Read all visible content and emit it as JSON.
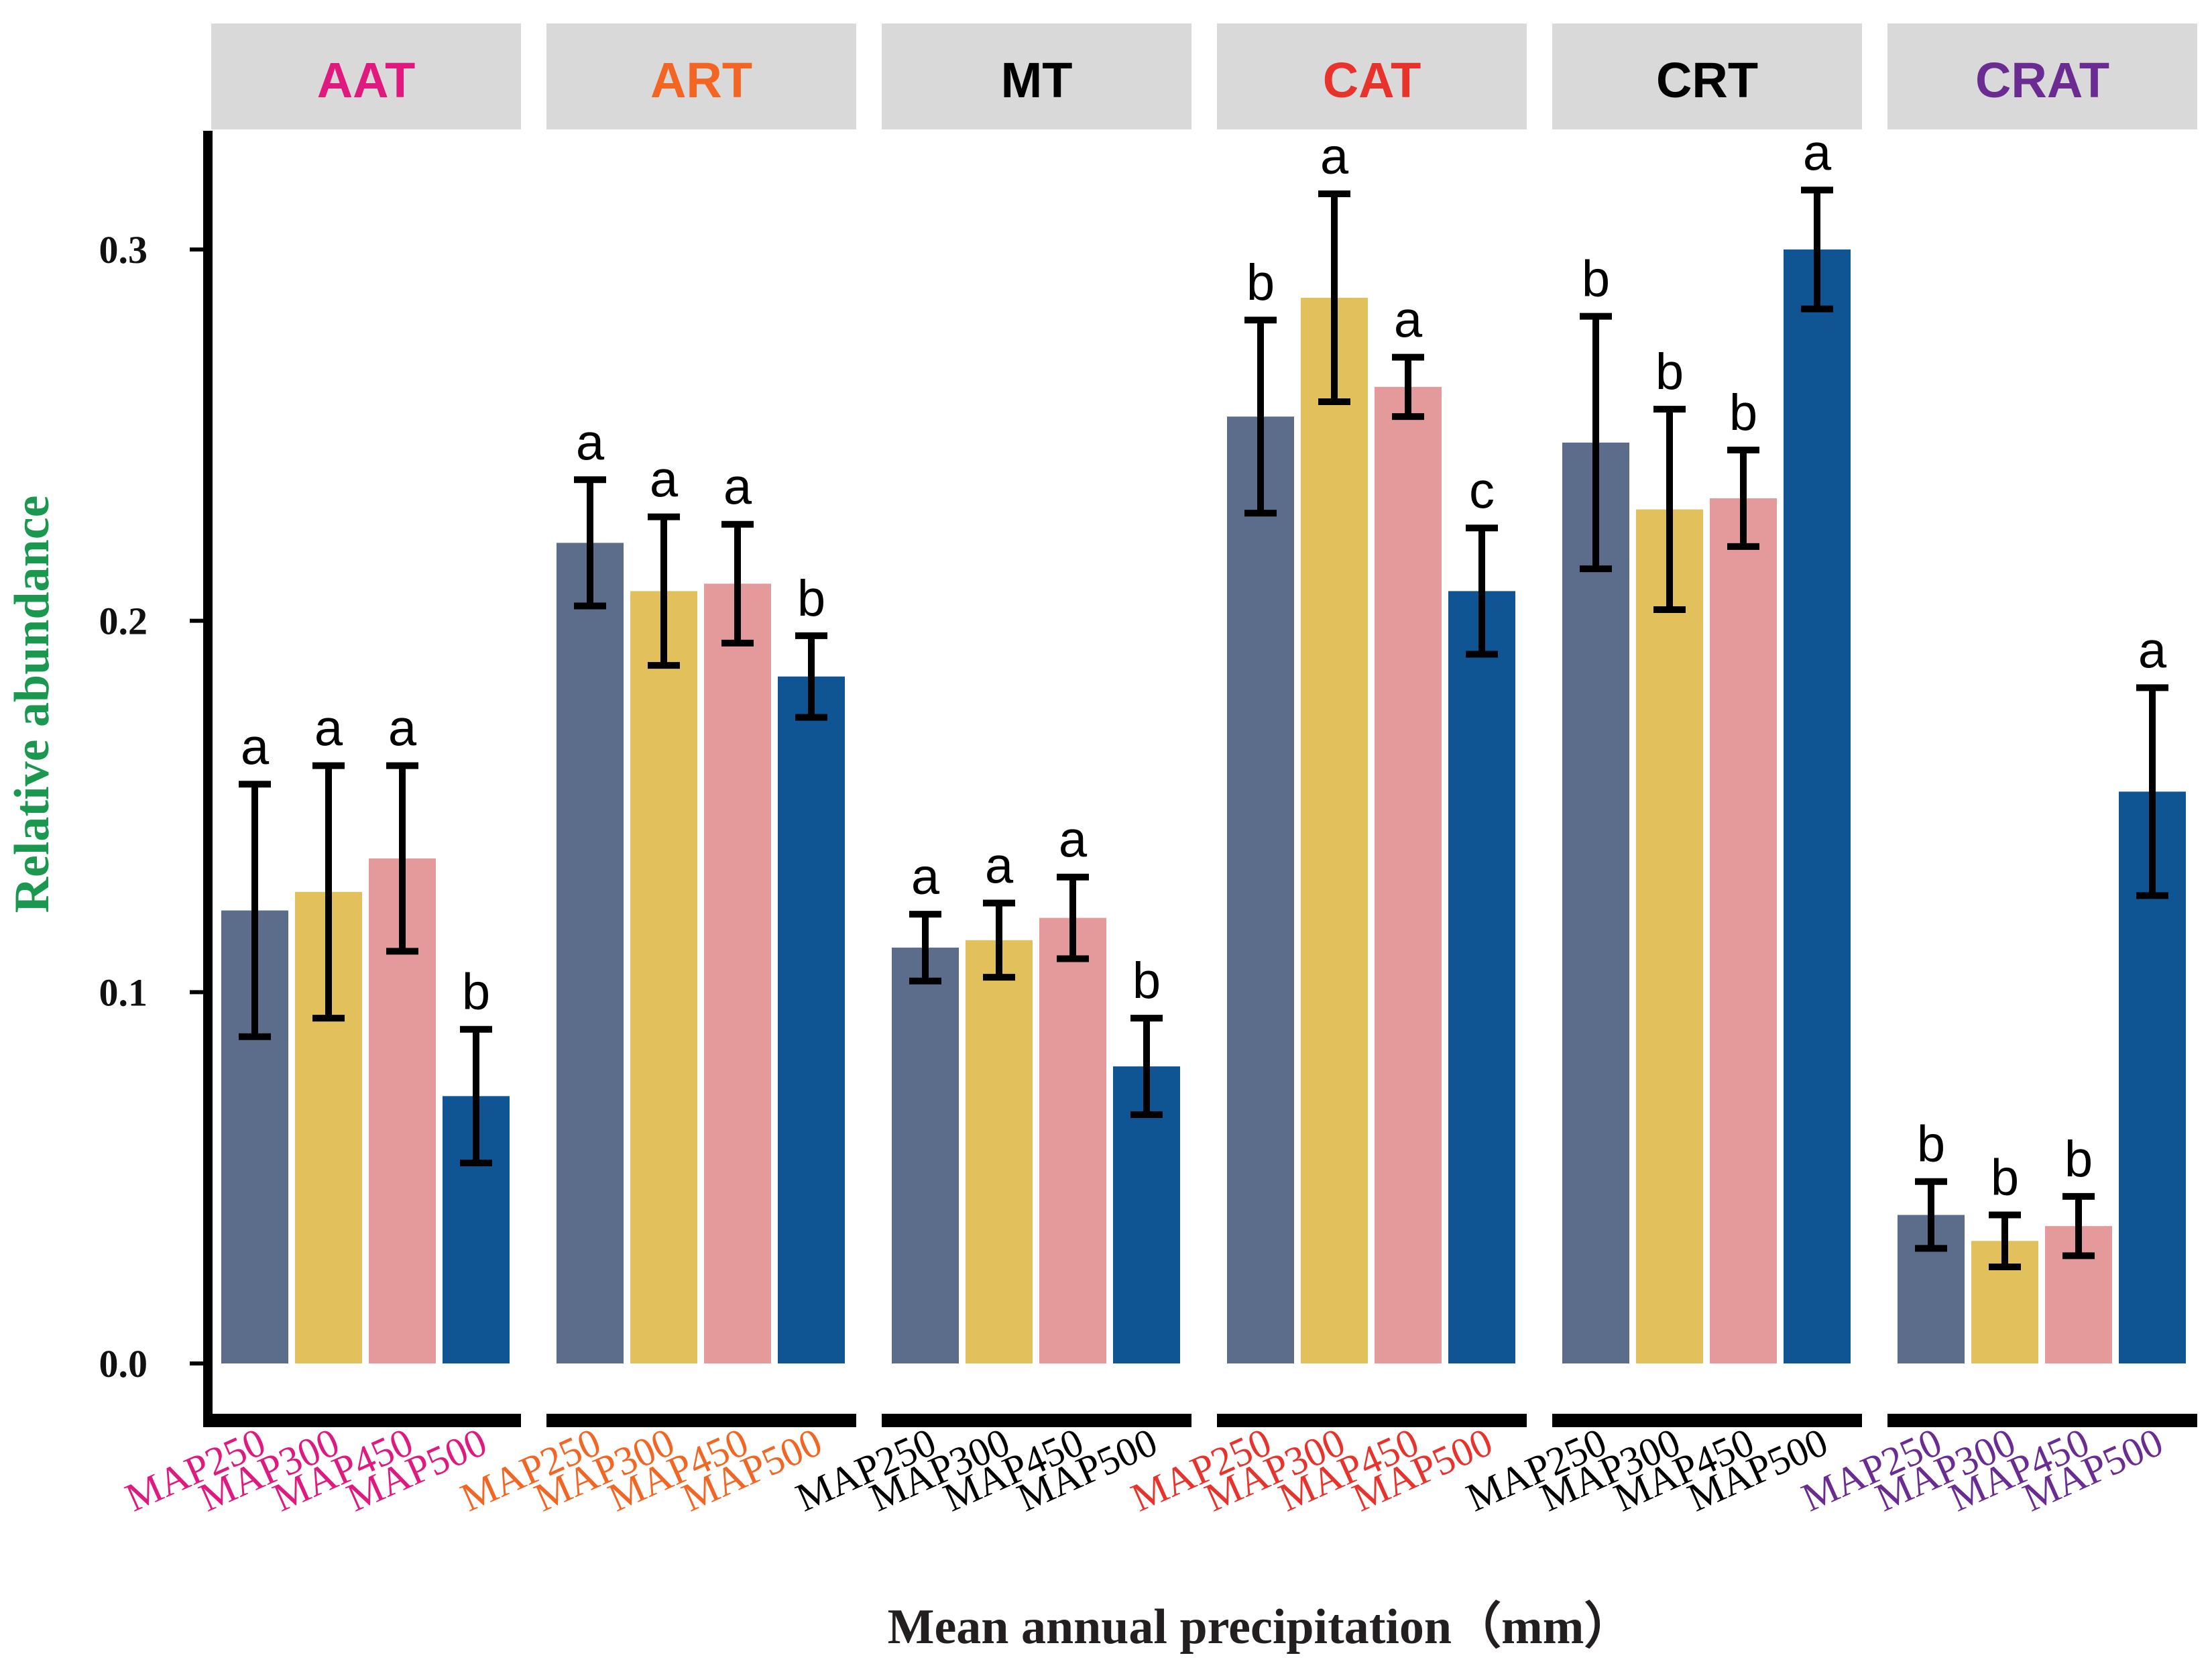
{
  "chart_data": {
    "type": "bar",
    "xlabel": "Mean annual precipitation（mm）",
    "ylabel": "Relative abundance",
    "ylim": [
      0,
      0.33
    ],
    "yticks": [
      "0.0",
      "0.1",
      "0.2",
      "0.3"
    ],
    "ytick_values": [
      0.0,
      0.1,
      0.2,
      0.3
    ],
    "categories": [
      "MAP250",
      "MAP300",
      "MAP450",
      "MAP500"
    ],
    "category_colors": [
      "#5b6d8a",
      "#e2c05b",
      "#e49a9b",
      "#0f5594"
    ],
    "facets": [
      {
        "name": "AAT",
        "color": "#e0197e",
        "values": [
          0.122,
          0.127,
          0.136,
          0.072
        ],
        "errors": [
          0.034,
          0.034,
          0.025,
          0.018
        ],
        "letters": [
          "a",
          "a",
          "a",
          "b"
        ]
      },
      {
        "name": "ART",
        "color": "#f26522",
        "values": [
          0.221,
          0.208,
          0.21,
          0.185
        ],
        "errors": [
          0.017,
          0.02,
          0.016,
          0.011
        ],
        "letters": [
          "a",
          "a",
          "a",
          "b"
        ]
      },
      {
        "name": "MT",
        "color": "#000000",
        "values": [
          0.112,
          0.114,
          0.12,
          0.08
        ],
        "errors": [
          0.009,
          0.01,
          0.011,
          0.013
        ],
        "letters": [
          "a",
          "a",
          "a",
          "b"
        ]
      },
      {
        "name": "CAT",
        "color": "#e8322c",
        "values": [
          0.255,
          0.287,
          0.263,
          0.208
        ],
        "errors": [
          0.026,
          0.028,
          0.008,
          0.017
        ],
        "letters": [
          "b",
          "a",
          "a",
          "c"
        ]
      },
      {
        "name": "CRT",
        "color": "#000000",
        "values": [
          0.248,
          0.23,
          0.233,
          0.3
        ],
        "errors": [
          0.034,
          0.027,
          0.013,
          0.016
        ],
        "letters": [
          "b",
          "b",
          "b",
          "a"
        ]
      },
      {
        "name": "CRAT",
        "color": "#6a2c91",
        "values": [
          0.04,
          0.033,
          0.037,
          0.154
        ],
        "errors": [
          0.009,
          0.007,
          0.008,
          0.028
        ],
        "letters": [
          "b",
          "b",
          "b",
          "a"
        ]
      }
    ],
    "axis_title_colors": {
      "y": "#1a9850",
      "x": "#231f20"
    }
  }
}
